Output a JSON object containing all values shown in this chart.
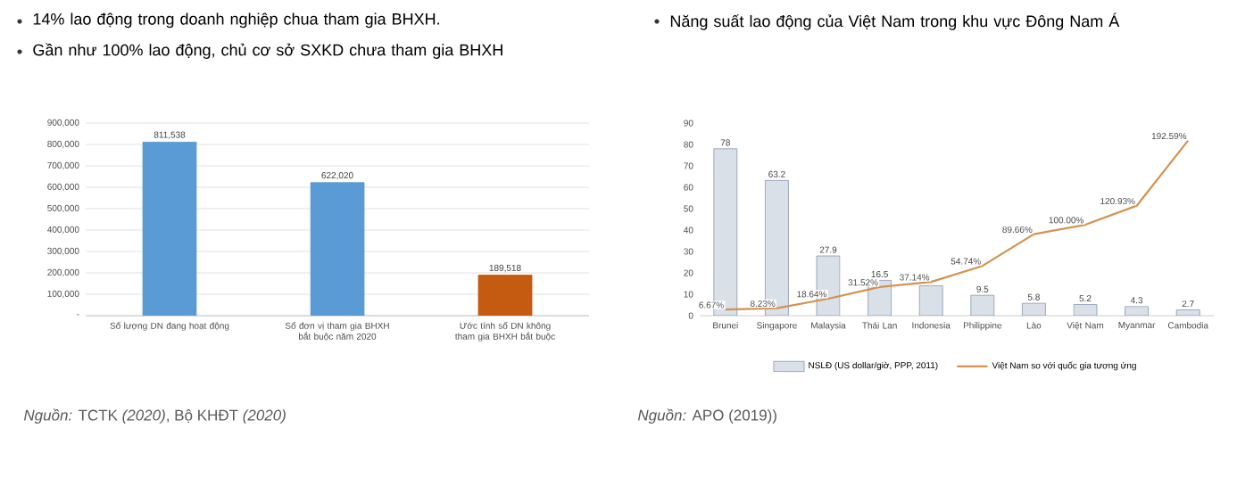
{
  "chart_data": [
    {
      "type": "bar",
      "title": "14% lao động trong doanh nghiệp chua tham gia BHXH.",
      "subtitle": "Gần như 100% lao động, chủ cơ sở SXKD chưa tham gia BHXH",
      "categories": [
        "Số lượng DN đang hoạt động",
        "Số đơn vị tham gia BHXH bắt buộc năm 2020",
        "Ước tính số DN không tham gia BHXH bắt buộc"
      ],
      "values": [
        811538,
        622020,
        189518
      ],
      "colors": [
        "#5b9bd5",
        "#5b9bd5",
        "#c55a11"
      ],
      "value_labels": [
        "811,538",
        "622,020",
        "189,518"
      ],
      "ylim": [
        0,
        900000
      ],
      "yticks": [
        {
          "value": 0,
          "label": "-"
        },
        {
          "value": 100000,
          "label": "100,000"
        },
        {
          "value": 200000,
          "label": "200,000"
        },
        {
          "value": 300000,
          "label": "300,000"
        },
        {
          "value": 400000,
          "label": "400,000"
        },
        {
          "value": 500000,
          "label": "500,000"
        },
        {
          "value": 600000,
          "label": "600,000"
        },
        {
          "value": 700000,
          "label": "700,000"
        },
        {
          "value": 800000,
          "label": "800,000"
        },
        {
          "value": 900000,
          "label": "900,000"
        }
      ],
      "grid": "y",
      "annotations": [
        "*Nguồn:* TCTK *(2020)*, Bộ KHĐT *(2020)*"
      ]
    },
    {
      "type": "bar",
      "title": "Năng suất lao động của Việt Nam trong khu vực Đông Nam Á",
      "categories": [
        "Brunei",
        "Singapore",
        "Malaysia",
        "Thái Lan",
        "Indonesia",
        "Philippine",
        "Lào",
        "Việt Nam",
        "Myanmar",
        "Cambodia"
      ],
      "series": [
        {
          "name": "NSLĐ (US dollar/giờ, PPP, 2011)",
          "color": "#8497b0",
          "values": [
            78,
            63.2,
            27.9,
            16.5,
            14,
            9.5,
            5.8,
            5.2,
            4.3,
            2.7
          ],
          "value_labels": [
            "78",
            "63.2",
            "27.9",
            "16.5",
            null,
            "9.5",
            "5.8",
            "5.2",
            "4.3",
            "2.7"
          ]
        },
        {
          "name": "Việt Nam so với quốc gia tương ứng",
          "type": "line",
          "axis": "y2",
          "color": "#d4914f",
          "values": [
            6.67,
            8.23,
            18.64,
            31.52,
            37.14,
            54.74,
            89.66,
            100,
            120.93,
            192.59
          ],
          "value_labels": [
            "6.67%",
            "8.23%",
            "18.64%",
            "31.52%",
            "37.14%",
            "54.74%",
            "89.66%",
            "100.00%",
            "120.93%",
            "192.59%"
          ]
        }
      ],
      "ylim": [
        0,
        90
      ],
      "yticks": [
        0,
        10,
        20,
        30,
        40,
        50,
        60,
        70,
        80,
        90
      ],
      "legend": "bottom",
      "annotations": [
        "*Nguồn:* APO (2019))"
      ]
    }
  ]
}
